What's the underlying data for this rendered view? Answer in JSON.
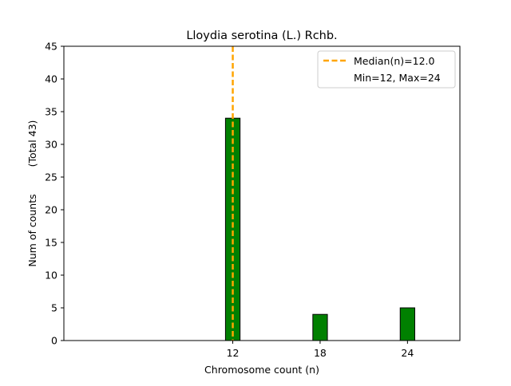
{
  "chart_data": {
    "type": "bar",
    "title": "Lloydia serotina (L.) Rchb.",
    "xlabel": "Chromosome count (n)",
    "ylabel": "Num of counts",
    "ylabel_total": "(Total 43)",
    "x": [
      12,
      18,
      24
    ],
    "values": [
      34,
      4,
      5
    ],
    "x_ticks": [
      12,
      18,
      24
    ],
    "y_ticks": [
      0,
      5,
      10,
      15,
      20,
      25,
      30,
      35,
      40,
      45
    ],
    "xlim": [
      0.4,
      27.6
    ],
    "ylim": [
      0,
      45
    ],
    "bar_width": 1.0,
    "bar_color": "#008000",
    "bar_edge_color": "#000000",
    "median": {
      "value": 12.0,
      "label": "Median(n)=12.0",
      "color": "#ffa500"
    },
    "legend": {
      "position": "top-right",
      "entries": [
        "Median(n)=12.0",
        "Min=12, Max=24"
      ]
    },
    "grid": false
  }
}
